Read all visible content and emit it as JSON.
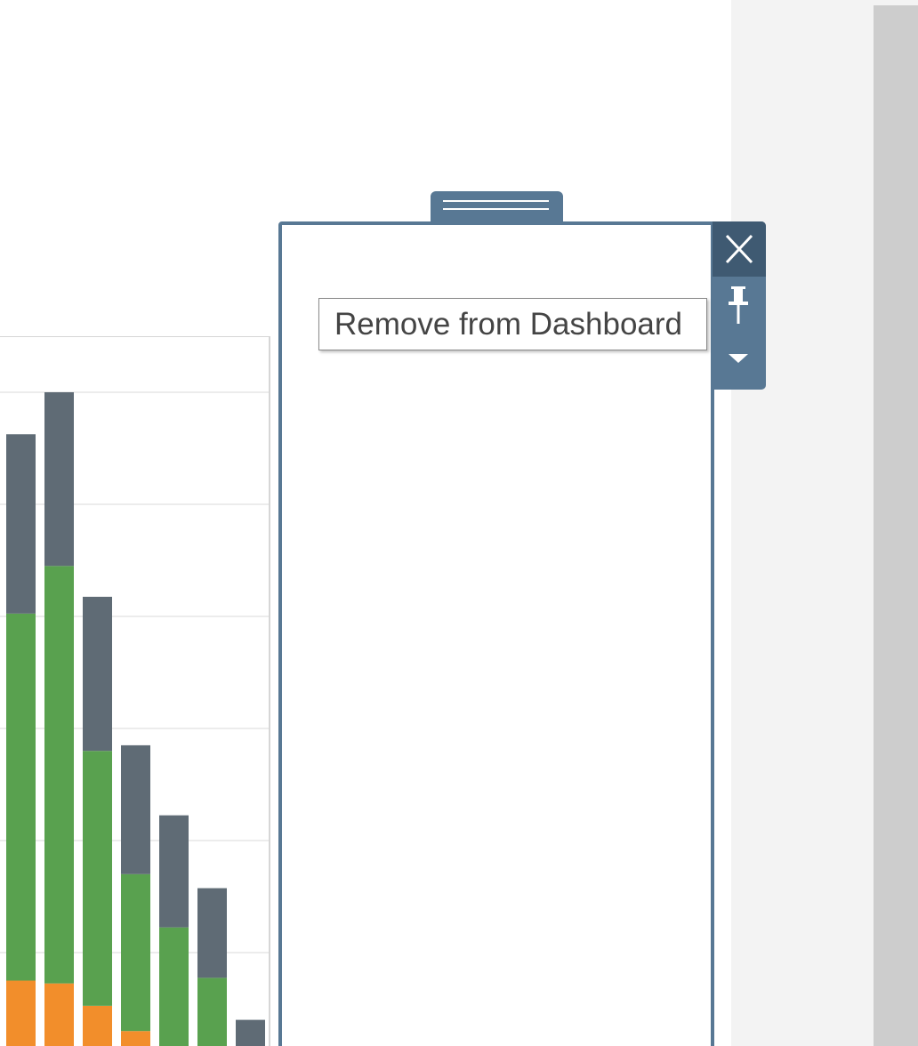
{
  "tooltip": {
    "text": "Remove from Dashboard"
  },
  "toolbar": {
    "close_icon": "close-icon",
    "pin_icon": "pin-icon",
    "more_icon": "chevron-down-icon"
  },
  "colors": {
    "accent": "#587894",
    "accent_dark": "#3f5a72",
    "series_bottom": "#f28e2b",
    "series_middle": "#59a14f",
    "series_top": "#5f6b75",
    "panel_bg": "#f3f3f3",
    "scrollbar": "#cdcdcd"
  },
  "chart_data": {
    "type": "bar",
    "stacked": true,
    "categories": [
      "",
      "",
      "",
      "",
      "",
      "",
      ""
    ],
    "series": [
      {
        "color": "#f28e2b",
        "values": [
          1.5,
          1.45,
          1.05,
          0.6,
          0.3,
          0,
          0
        ]
      },
      {
        "color": "#59a14f",
        "values": [
          6.55,
          7.45,
          4.55,
          2.8,
          2.15,
          1.55,
          0
        ]
      },
      {
        "color": "#5f6b75",
        "values": [
          3.2,
          3.1,
          2.75,
          2.3,
          2.0,
          1.6,
          0.8
        ]
      }
    ],
    "gridlines": [
      0,
      2,
      4,
      6,
      8,
      10,
      12
    ],
    "grid": true,
    "legend": "none",
    "title": "",
    "xlabel": "",
    "ylabel": ""
  }
}
